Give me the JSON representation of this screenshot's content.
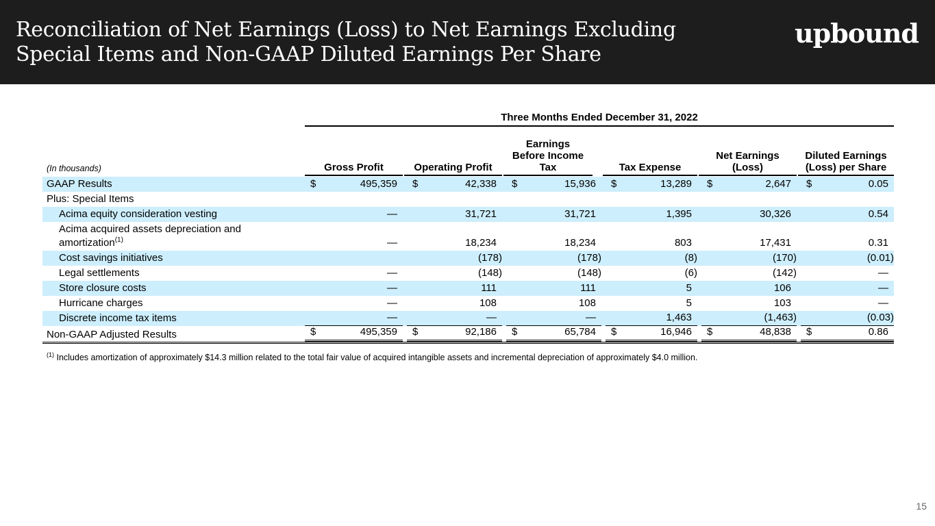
{
  "header": {
    "title_line1": "Reconciliation of Net Earnings (Loss) to Net Earnings Excluding",
    "title_line2": "Special Items and Non-GAAP Diluted Earnings Per Share",
    "logo": "upbound"
  },
  "table": {
    "period": "Three Months Ended December 31, 2022",
    "units": "(In thousands)",
    "columns": [
      "Gross Profit",
      "Operating Profit",
      "Earnings Before Income Tax",
      "Tax Expense",
      "Net  Earnings (Loss)",
      "Diluted Earnings (Loss) per Share"
    ],
    "rows": [
      {
        "label": "GAAP Results",
        "dollar": true,
        "values": [
          "495,359",
          "42,338",
          "15,936",
          "13,289",
          "2,647",
          "0.05"
        ]
      },
      {
        "label": "Plus: Special Items",
        "values": [
          "",
          "",
          "",
          "",
          "",
          ""
        ]
      },
      {
        "label": "Acima equity consideration vesting",
        "indent": true,
        "values": [
          "—",
          "31,721",
          "31,721",
          "1,395",
          "30,326",
          "0.54"
        ]
      },
      {
        "label": "Acima acquired assets depreciation and",
        "label2": "amortization",
        "sup": "(1)",
        "indent": true,
        "values": [
          "—",
          "18,234",
          "18,234",
          "803",
          "17,431",
          "0.31"
        ]
      },
      {
        "label": "Cost savings initiatives",
        "indent": true,
        "values": [
          "",
          "(178)",
          "(178)",
          "(8)",
          "(170)",
          "(0.01)"
        ]
      },
      {
        "label": "Legal settlements",
        "indent": true,
        "values": [
          "—",
          "(148)",
          "(148)",
          "(6)",
          "(142)",
          "—"
        ]
      },
      {
        "label": "Store closure costs",
        "indent": true,
        "values": [
          "—",
          "111",
          "111",
          "5",
          "106",
          "—"
        ]
      },
      {
        "label": "Hurricane charges",
        "indent": true,
        "values": [
          "—",
          "108",
          "108",
          "5",
          "103",
          "—"
        ]
      },
      {
        "label": "Discrete income tax items",
        "indent": true,
        "values": [
          "—",
          "—",
          "—",
          "1,463",
          "(1,463)",
          "(0.03)"
        ]
      },
      {
        "label": "Non-GAAP Adjusted Results",
        "dollar": true,
        "values": [
          "495,359",
          "92,186",
          "65,784",
          "16,946",
          "48,838",
          "0.86"
        ]
      }
    ]
  },
  "footnote": {
    "marker": "(1)",
    "text": "Includes amortization of approximately $14.3 million related to the total fair value of acquired intangible assets and incremental depreciation of approximately $4.0 million."
  },
  "page_number": "15",
  "dollar_sign": "$"
}
